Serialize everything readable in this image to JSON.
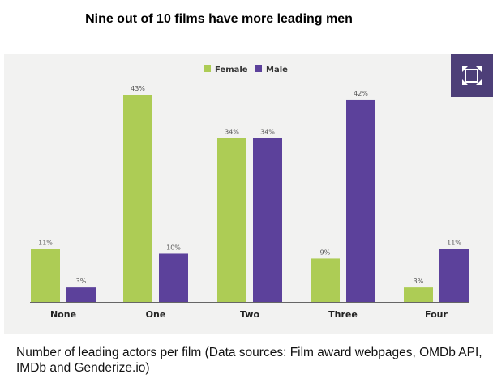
{
  "title": "Nine out of 10 films have more leading men",
  "caption": "Number of leading actors per film (Data sources: Film award webpages, OMDb API, IMDb and Genderize.io)",
  "expand_button": {
    "icon": "expand-icon",
    "color": "#4d3f78"
  },
  "chart_data": {
    "type": "bar",
    "categories": [
      "None",
      "One",
      "Two",
      "Three",
      "Four"
    ],
    "series": [
      {
        "name": "Female",
        "color": "#adcc55",
        "values": [
          11,
          43,
          34,
          9,
          3
        ],
        "labels": [
          "11%",
          "43%",
          "34%",
          "9%",
          "3%"
        ]
      },
      {
        "name": "Male",
        "color": "#5c419b",
        "values": [
          3,
          10,
          34,
          42,
          11
        ],
        "labels": [
          "3%",
          "10%",
          "34%",
          "42%",
          "11%"
        ]
      }
    ],
    "ylim": [
      0,
      43
    ],
    "grid": false,
    "legend": "top-center",
    "xlabel": "",
    "ylabel": ""
  }
}
